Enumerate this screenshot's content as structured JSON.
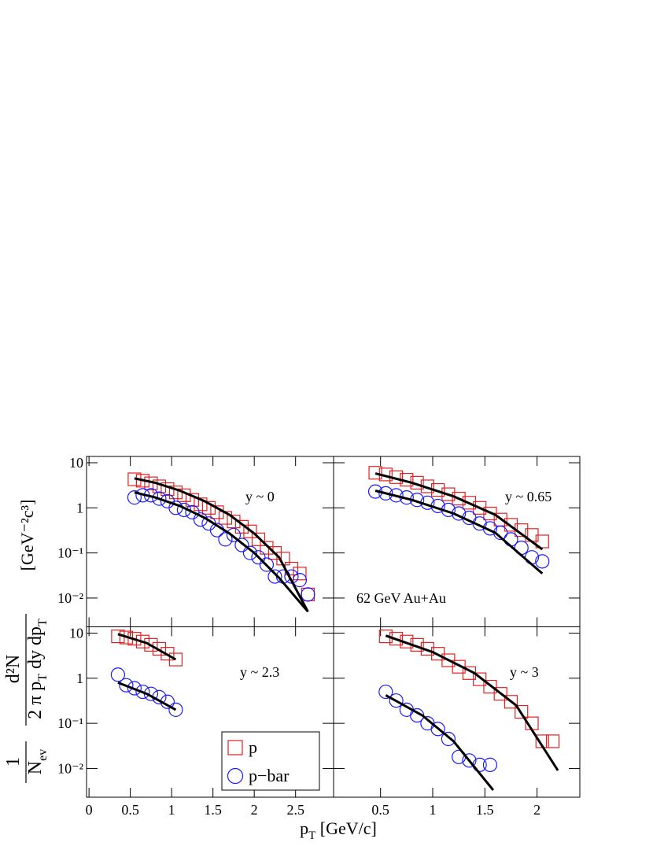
{
  "chart_data": [
    {
      "type": "scatter",
      "log_y": true,
      "annotations": [
        "y ~ 0"
      ],
      "xlim": [
        -0.03,
        2.96
      ],
      "ylim": [
        0.0023,
        13.8
      ],
      "yticks": [
        10,
        1,
        {
          "value": 0.1,
          "label": "10⁻¹"
        },
        {
          "value": 0.01,
          "label": "10⁻²"
        }
      ],
      "series": [
        {
          "marker": "square",
          "color": "#e02020",
          "x": [
            0.55,
            0.65,
            0.75,
            0.85,
            0.95,
            1.05,
            1.15,
            1.25,
            1.35,
            1.45,
            1.55,
            1.65,
            1.75,
            1.85,
            1.95,
            2.05,
            2.15,
            2.25,
            2.35,
            2.45,
            2.55,
            2.65
          ],
          "values": [
            4.3,
            4.0,
            3.5,
            3.0,
            2.6,
            2.2,
            1.9,
            1.5,
            1.2,
            1.0,
            0.8,
            0.6,
            0.5,
            0.38,
            0.3,
            0.2,
            0.13,
            0.1,
            0.075,
            0.045,
            0.035,
            0.012
          ]
        },
        {
          "marker": "circle",
          "color": "#1a1aff",
          "x": [
            0.55,
            0.65,
            0.75,
            0.85,
            0.95,
            1.05,
            1.15,
            1.25,
            1.35,
            1.45,
            1.55,
            1.65,
            1.75,
            1.85,
            1.95,
            2.05,
            2.15,
            2.25,
            2.35,
            2.45,
            2.55,
            2.65
          ],
          "values": [
            1.7,
            1.9,
            1.9,
            1.6,
            1.4,
            1.0,
            0.9,
            0.8,
            0.55,
            0.45,
            0.32,
            0.2,
            0.25,
            0.15,
            0.1,
            0.08,
            0.055,
            0.03,
            0.03,
            0.03,
            0.025,
            0.012
          ]
        },
        {
          "marker": "line",
          "color": "#000000",
          "x": [
            0.55,
            0.8,
            1.1,
            1.4,
            1.7,
            2.0,
            2.3,
            2.65
          ],
          "values": [
            4.5,
            3.6,
            2.4,
            1.4,
            0.7,
            0.27,
            0.08,
            0.005
          ]
        },
        {
          "marker": "line",
          "color": "#000000",
          "x": [
            0.55,
            0.8,
            1.1,
            1.4,
            1.7,
            2.0,
            2.3,
            2.65
          ],
          "values": [
            2.2,
            1.7,
            1.1,
            0.6,
            0.27,
            0.1,
            0.028,
            0.005
          ]
        }
      ]
    },
    {
      "type": "scatter",
      "log_y": true,
      "annotations": [
        "y ~ 0.65",
        "62 GeV Au+Au"
      ],
      "xlim": [
        0.05,
        2.41
      ],
      "ylim": [
        0.0023,
        13.8
      ],
      "series": [
        {
          "marker": "square",
          "color": "#e02020",
          "x": [
            0.45,
            0.55,
            0.65,
            0.75,
            0.85,
            0.95,
            1.05,
            1.15,
            1.25,
            1.35,
            1.45,
            1.55,
            1.65,
            1.75,
            1.85,
            1.95,
            2.05
          ],
          "values": [
            6,
            5.5,
            4.8,
            4.2,
            3.6,
            3.0,
            2.5,
            2.0,
            1.6,
            1.3,
            1.0,
            0.75,
            0.55,
            0.42,
            0.32,
            0.25,
            0.18
          ]
        },
        {
          "marker": "circle",
          "color": "#1a1aff",
          "x": [
            0.45,
            0.55,
            0.65,
            0.75,
            0.85,
            0.95,
            1.05,
            1.15,
            1.25,
            1.35,
            1.45,
            1.55,
            1.65,
            1.75,
            1.85,
            1.95,
            2.05
          ],
          "values": [
            2.3,
            2.1,
            1.9,
            1.7,
            1.5,
            1.3,
            1.1,
            0.9,
            0.75,
            0.6,
            0.45,
            0.35,
            0.28,
            0.2,
            0.13,
            0.08,
            0.065
          ]
        },
        {
          "marker": "line",
          "color": "#000000",
          "x": [
            0.45,
            0.8,
            1.2,
            1.6,
            2.05
          ],
          "values": [
            5.8,
            3.6,
            1.8,
            0.7,
            0.12
          ]
        },
        {
          "marker": "line",
          "color": "#000000",
          "x": [
            0.45,
            0.8,
            1.2,
            1.6,
            2.05
          ],
          "values": [
            2.4,
            1.5,
            0.75,
            0.28,
            0.035
          ]
        }
      ]
    },
    {
      "type": "scatter",
      "log_y": true,
      "annotations": [
        "y ~ 2.3"
      ],
      "xlim": [
        -0.03,
        2.96
      ],
      "ylim": [
        0.0023,
        13.8
      ],
      "xticks": [
        0,
        0.5,
        1,
        1.5,
        2,
        2.5
      ],
      "yticks": [
        10,
        1,
        {
          "value": 0.1,
          "label": "10⁻¹"
        },
        {
          "value": 0.01,
          "label": "10⁻²"
        }
      ],
      "series": [
        {
          "name": "p",
          "marker": "square",
          "color": "#e02020",
          "x": [
            0.35,
            0.45,
            0.55,
            0.65,
            0.75,
            0.85,
            0.95,
            1.05
          ],
          "values": [
            8.5,
            8,
            7.5,
            6.5,
            5.5,
            4.5,
            3.5,
            2.6
          ]
        },
        {
          "name": "p−bar",
          "marker": "circle",
          "color": "#1a1aff",
          "x": [
            0.35,
            0.45,
            0.55,
            0.65,
            0.75,
            0.85,
            0.95,
            1.05
          ],
          "values": [
            1.2,
            0.7,
            0.6,
            0.5,
            0.45,
            0.38,
            0.3,
            0.2
          ]
        },
        {
          "marker": "line",
          "color": "#000000",
          "x": [
            0.35,
            0.7,
            1.05
          ],
          "values": [
            9.5,
            6,
            2.6
          ]
        },
        {
          "marker": "line",
          "color": "#000000",
          "x": [
            0.35,
            0.7,
            1.05
          ],
          "values": [
            0.8,
            0.45,
            0.2
          ]
        }
      ]
    },
    {
      "type": "scatter",
      "log_y": true,
      "annotations": [
        "y ~ 3"
      ],
      "xlim": [
        0.05,
        2.41
      ],
      "ylim": [
        0.0023,
        13.8
      ],
      "xticks": [
        0.5,
        1,
        1.5,
        2
      ],
      "series": [
        {
          "marker": "square",
          "color": "#e02020",
          "x": [
            0.55,
            0.65,
            0.75,
            0.85,
            0.95,
            1.05,
            1.15,
            1.25,
            1.35,
            1.45,
            1.55,
            1.65,
            1.75,
            1.85,
            1.95,
            2.05,
            2.15
          ],
          "values": [
            8.5,
            7.5,
            6.5,
            5.5,
            4.5,
            3.5,
            2.5,
            1.8,
            1.3,
            0.95,
            0.65,
            0.45,
            0.3,
            0.18,
            0.1,
            0.04,
            0.04
          ]
        },
        {
          "marker": "circle",
          "color": "#1a1aff",
          "x": [
            0.55,
            0.65,
            0.75,
            0.85,
            0.95,
            1.05,
            1.15,
            1.25,
            1.35,
            1.45,
            1.55
          ],
          "values": [
            0.5,
            0.32,
            0.2,
            0.15,
            0.1,
            0.075,
            0.045,
            0.018,
            0.015,
            0.012,
            0.012
          ]
        },
        {
          "marker": "line",
          "color": "#000000",
          "x": [
            0.55,
            1.0,
            1.4,
            1.8,
            2.2
          ],
          "values": [
            8.8,
            3.8,
            1.3,
            0.25,
            0.009
          ]
        },
        {
          "marker": "line",
          "color": "#000000",
          "x": [
            0.55,
            0.9,
            1.2,
            1.58
          ],
          "values": [
            0.42,
            0.15,
            0.04,
            0.0033
          ]
        }
      ]
    }
  ],
  "axis_titles": {
    "x": "p",
    "x_sub": "T",
    "x_units": "  [GeV/c]",
    "y_one": "1",
    "y_n": "N",
    "y_n_sub": "ev",
    "y_num": "d²N",
    "y_den": "2 π p",
    "y_den_sub": "T",
    "y_den_rest": " dy dp",
    "y_den_sub2": "T",
    "y_units": "[GeV⁻²c³]"
  }
}
